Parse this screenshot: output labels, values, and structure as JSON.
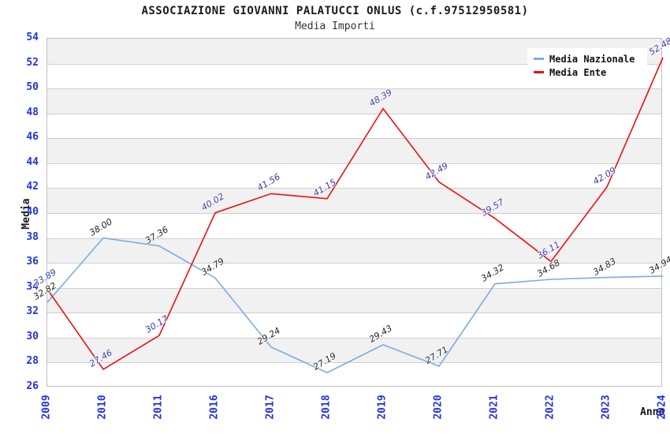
{
  "title": "ASSOCIAZIONE GIOVANNI PALATUCCI ONLUS (c.f.97512950581)",
  "subtitle": "Media Importi",
  "colors": {
    "axis_text": "#2233dd",
    "grid": "#cfcfcf",
    "band": "#f1f1f1",
    "plot_border": "#c0c0c0",
    "nazionale_line": "#79ade0",
    "ente_line": "#ee0f0f",
    "nazionale_label": "#222222",
    "ente_label": "#3838a8"
  },
  "legend": {
    "items": [
      {
        "label": "Media Nazionale",
        "color": "#79ade0"
      },
      {
        "label": "Media Ente",
        "color": "#ee0f0f"
      }
    ]
  },
  "chart_data": {
    "type": "line",
    "title": "ASSOCIAZIONE GIOVANNI PALATUCCI ONLUS (c.f.97512950581)",
    "subtitle": "Media Importi",
    "xlabel": "Anno",
    "ylabel": "Media",
    "x": [
      "2009",
      "2010",
      "2011",
      "2016",
      "2017",
      "2018",
      "2019",
      "2020",
      "2021",
      "2022",
      "2023",
      "2024"
    ],
    "series": [
      {
        "name": "Media Nazionale",
        "color": "#79ade0",
        "label_color": "#222222",
        "values": [
          32.82,
          38.0,
          37.36,
          34.79,
          29.24,
          27.19,
          29.43,
          27.71,
          34.32,
          34.68,
          34.83,
          34.94
        ]
      },
      {
        "name": "Media Ente",
        "color": "#ee0f0f",
        "label_color": "#3838a8",
        "values": [
          33.89,
          27.46,
          30.17,
          40.02,
          41.56,
          41.15,
          48.39,
          42.49,
          39.57,
          36.11,
          42.09,
          52.48
        ]
      }
    ],
    "ylim": [
      26,
      54
    ],
    "ytick_step": 2,
    "grid": true,
    "alternating_bands": true,
    "legend_position": "top-right",
    "value_labels_shown": true
  }
}
